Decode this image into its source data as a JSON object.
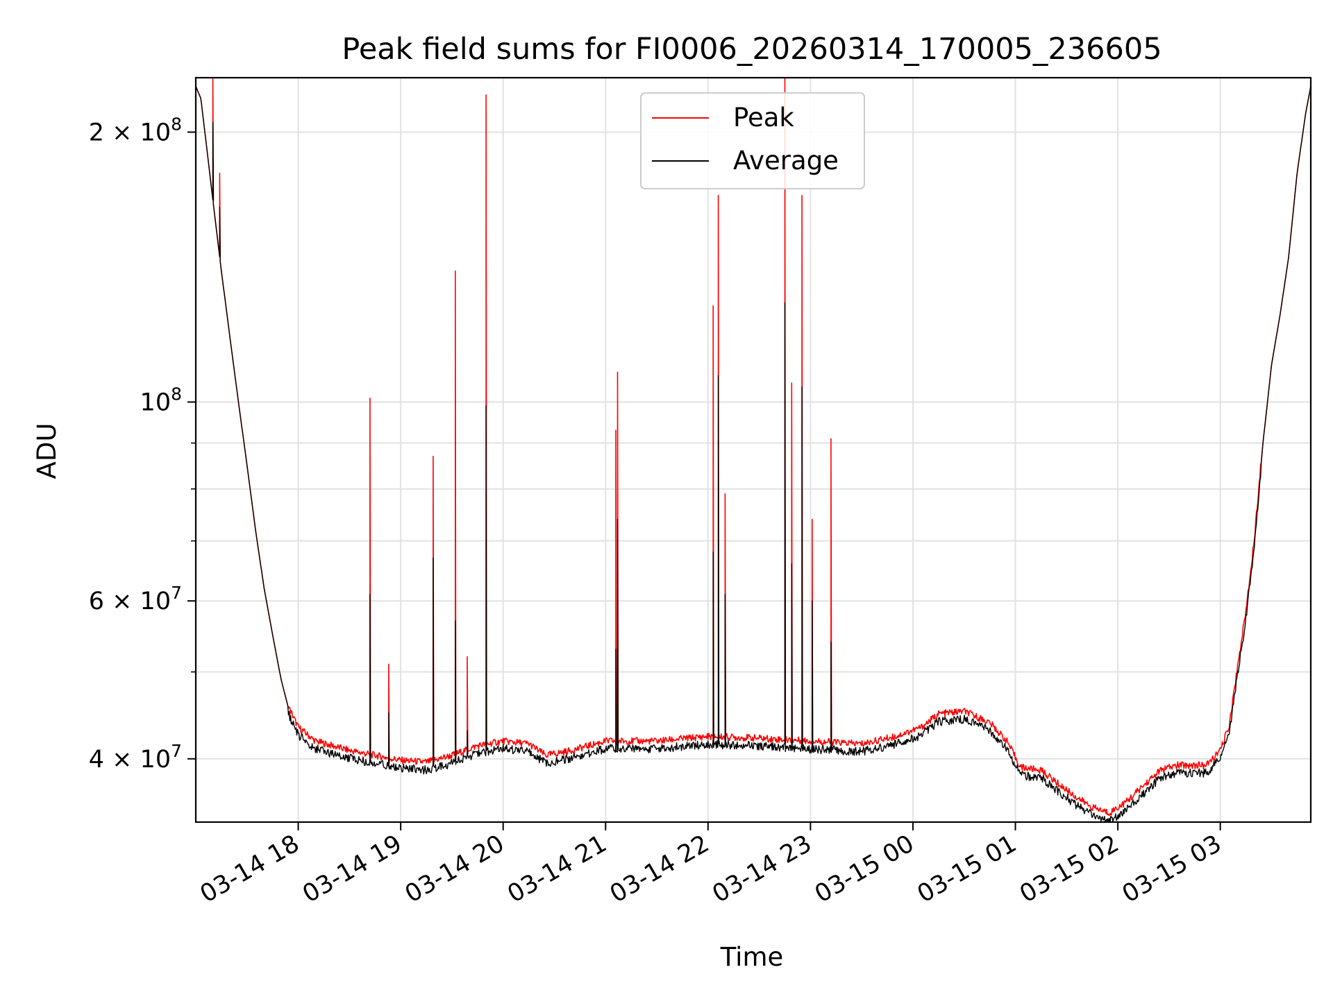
{
  "chart_data": {
    "type": "line",
    "title": "Peak field sums for FI0006_20260314_170005_236605",
    "xlabel": "Time",
    "ylabel": "ADU",
    "yscale": "log",
    "ylim": [
      34000000,
      230000000
    ],
    "xlim": [
      "2026-03-14 17:00",
      "2026-03-15 03:53"
    ],
    "grid": true,
    "legend_position": "top-center",
    "x_ticks": [
      "2026-03-14 18:00",
      "2026-03-14 19:00",
      "2026-03-14 20:00",
      "2026-03-14 21:00",
      "2026-03-14 22:00",
      "2026-03-14 23:00",
      "2026-03-15 00:00",
      "2026-03-15 01:00",
      "2026-03-15 02:00",
      "2026-03-15 03:00"
    ],
    "x_tick_labels": [
      "03-14 18",
      "03-14 19",
      "03-14 20",
      "03-14 21",
      "03-14 22",
      "03-14 23",
      "03-15 00",
      "03-15 01",
      "03-15 02",
      "03-15 03"
    ],
    "y_major_ticks": [
      {
        "value": 40000000,
        "mantissa": "4",
        "exponent": "7"
      },
      {
        "value": 60000000,
        "mantissa": "6",
        "exponent": "7"
      },
      {
        "value": 100000000,
        "mantissa": "",
        "exponent": "8"
      },
      {
        "value": 200000000,
        "mantissa": "2",
        "exponent": "8"
      }
    ],
    "y_minor_ticks": [
      50000000,
      70000000,
      80000000,
      90000000
    ],
    "baseline": {
      "x": [
        "2026-03-14 17:00",
        "2026-03-14 17:03",
        "2026-03-14 17:06",
        "2026-03-14 17:10",
        "2026-03-14 17:15",
        "2026-03-14 17:20",
        "2026-03-14 17:25",
        "2026-03-14 17:30",
        "2026-03-14 17:35",
        "2026-03-14 17:40",
        "2026-03-14 17:45",
        "2026-03-14 17:50",
        "2026-03-14 17:55",
        "2026-03-14 18:00",
        "2026-03-14 18:10",
        "2026-03-14 18:20",
        "2026-03-14 18:30",
        "2026-03-14 18:45",
        "2026-03-14 19:00",
        "2026-03-14 19:15",
        "2026-03-14 19:30",
        "2026-03-14 19:45",
        "2026-03-14 20:00",
        "2026-03-14 20:15",
        "2026-03-14 20:25",
        "2026-03-14 20:40",
        "2026-03-14 21:00",
        "2026-03-14 21:30",
        "2026-03-14 22:00",
        "2026-03-14 22:30",
        "2026-03-14 23:00",
        "2026-03-14 23:30",
        "2026-03-14 23:50",
        "2026-03-15 00:05",
        "2026-03-15 00:15",
        "2026-03-15 00:30",
        "2026-03-15 00:45",
        "2026-03-15 00:55",
        "2026-03-15 01:03",
        "2026-03-15 01:15",
        "2026-03-15 01:25",
        "2026-03-15 01:35",
        "2026-03-15 01:45",
        "2026-03-15 01:55",
        "2026-03-15 02:05",
        "2026-03-15 02:15",
        "2026-03-15 02:25",
        "2026-03-15 02:35",
        "2026-03-15 02:45",
        "2026-03-15 02:52",
        "2026-03-15 03:00",
        "2026-03-15 03:05",
        "2026-03-15 03:10",
        "2026-03-15 03:15",
        "2026-03-15 03:20",
        "2026-03-15 03:25",
        "2026-03-15 03:30",
        "2026-03-15 03:35",
        "2026-03-15 03:40",
        "2026-03-15 03:45",
        "2026-03-15 03:50",
        "2026-03-15 03:53"
      ],
      "y": [
        225000000,
        218000000,
        195000000,
        168000000,
        140000000,
        118000000,
        100000000,
        85000000,
        72000000,
        62000000,
        55000000,
        49000000,
        45000000,
        43000000,
        41500000,
        41000000,
        40500000,
        40000000,
        39500000,
        39300000,
        40000000,
        41000000,
        41500000,
        41200000,
        40000000,
        40500000,
        41500000,
        41500000,
        42000000,
        41800000,
        41500000,
        41200000,
        42000000,
        43000000,
        44500000,
        44800000,
        43500000,
        41500000,
        38800000,
        38500000,
        37200000,
        36000000,
        35000000,
        34500000,
        35500000,
        37000000,
        38500000,
        39000000,
        39000000,
        39000000,
        40500000,
        43000000,
        50000000,
        58000000,
        70000000,
        90000000,
        110000000,
        125000000,
        145000000,
        180000000,
        210000000,
        225000000
      ]
    },
    "series": [
      {
        "name": "Peak",
        "color": "#ff0000",
        "spikes": [
          {
            "x": "2026-03-14 17:10",
            "y": 230000000
          },
          {
            "x": "2026-03-14 17:14",
            "y": 180000000
          },
          {
            "x": "2026-03-14 18:42",
            "y": 101000000
          },
          {
            "x": "2026-03-14 18:53",
            "y": 51000000
          },
          {
            "x": "2026-03-14 19:19",
            "y": 87000000
          },
          {
            "x": "2026-03-14 19:32",
            "y": 140000000
          },
          {
            "x": "2026-03-14 19:39",
            "y": 52000000
          },
          {
            "x": "2026-03-14 19:50",
            "y": 220000000
          },
          {
            "x": "2026-03-14 21:06",
            "y": 93000000
          },
          {
            "x": "2026-03-14 21:07",
            "y": 108000000
          },
          {
            "x": "2026-03-14 22:03",
            "y": 128000000
          },
          {
            "x": "2026-03-14 22:06",
            "y": 170000000
          },
          {
            "x": "2026-03-14 22:10",
            "y": 79000000
          },
          {
            "x": "2026-03-14 22:45",
            "y": 230000000
          },
          {
            "x": "2026-03-14 22:49",
            "y": 105000000
          },
          {
            "x": "2026-03-14 22:55",
            "y": 170000000
          },
          {
            "x": "2026-03-14 23:01",
            "y": 74000000
          },
          {
            "x": "2026-03-14 23:12",
            "y": 91000000
          }
        ]
      },
      {
        "name": "Average",
        "color": "#000000",
        "spikes": [
          {
            "x": "2026-03-14 17:10",
            "y": 205000000
          },
          {
            "x": "2026-03-14 17:14",
            "y": 165000000
          },
          {
            "x": "2026-03-14 18:42",
            "y": 61000000
          },
          {
            "x": "2026-03-14 18:53",
            "y": 45000000
          },
          {
            "x": "2026-03-14 19:19",
            "y": 67000000
          },
          {
            "x": "2026-03-14 19:32",
            "y": 57000000
          },
          {
            "x": "2026-03-14 19:39",
            "y": 43000000
          },
          {
            "x": "2026-03-14 19:50",
            "y": 99000000
          },
          {
            "x": "2026-03-14 21:06",
            "y": 53000000
          },
          {
            "x": "2026-03-14 21:07",
            "y": 74000000
          },
          {
            "x": "2026-03-14 22:03",
            "y": 68000000
          },
          {
            "x": "2026-03-14 22:06",
            "y": 107000000
          },
          {
            "x": "2026-03-14 22:10",
            "y": 61000000
          },
          {
            "x": "2026-03-14 22:45",
            "y": 129000000
          },
          {
            "x": "2026-03-14 22:49",
            "y": 66000000
          },
          {
            "x": "2026-03-14 22:55",
            "y": 104000000
          },
          {
            "x": "2026-03-14 23:01",
            "y": 60000000
          },
          {
            "x": "2026-03-14 23:12",
            "y": 54000000
          }
        ]
      }
    ]
  }
}
